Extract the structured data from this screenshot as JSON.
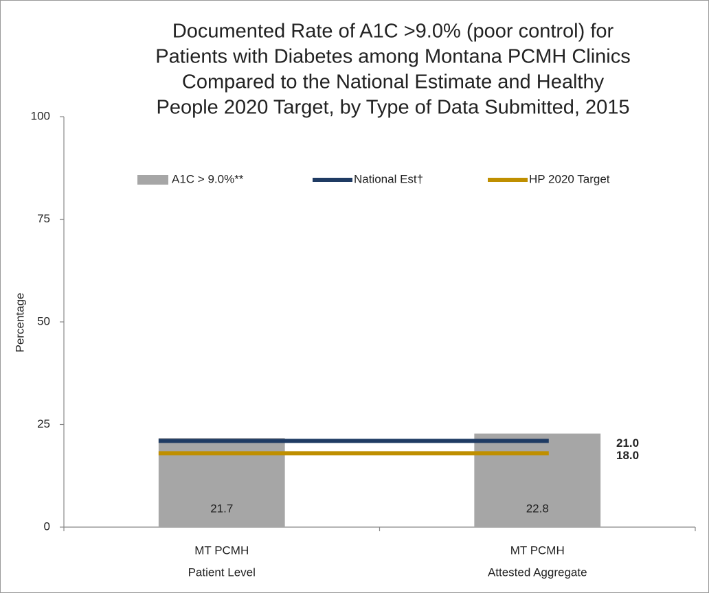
{
  "chart_data": {
    "type": "bar",
    "title": [
      "Documented Rate of A1C >9.0% (poor control) for",
      "Patients with Diabetes among Montana PCMH Clinics",
      "Compared to the National Estimate and Healthy",
      "People 2020 Target, by Type of Data Submitted, 2015"
    ],
    "y_label": "Percentage",
    "categories": [
      [
        "MT PCMH",
        "Patient Level"
      ],
      [
        "MT PCMH",
        "Attested Aggregate"
      ]
    ],
    "series": [
      {
        "name": "A1C > 9.0%**",
        "type": "bar",
        "color": "#a6a6a6",
        "values": [
          21.7,
          22.8
        ]
      },
      {
        "name": "National Est†",
        "type": "line",
        "color": "#1f3b63",
        "values": [
          21,
          21
        ],
        "value_labels": [
          null,
          "21.0"
        ]
      },
      {
        "name": "HP 2020 Target",
        "type": "line",
        "color": "#bf8f00",
        "values": [
          18,
          18
        ],
        "value_labels": [
          null,
          "18.0"
        ]
      }
    ],
    "ylim": [
      0,
      100
    ],
    "yticks": [
      0,
      25,
      50,
      75,
      100
    ],
    "grid": false,
    "legend": "top"
  }
}
